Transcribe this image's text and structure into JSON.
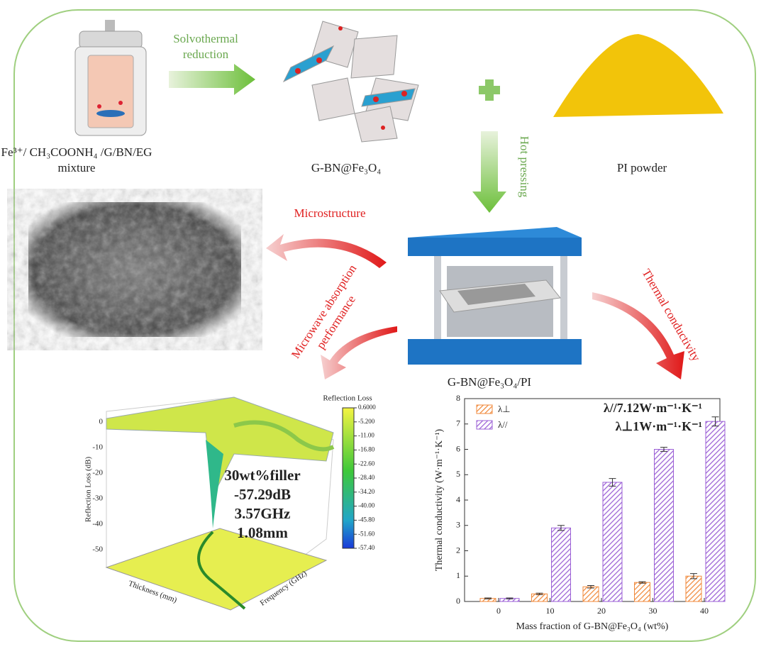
{
  "process": {
    "solvothermal_lines": [
      "Solvothermal",
      "reduction"
    ],
    "mixture_lines": [
      "Fe³⁺/ CH₃COONH₄ /G/BN/EG",
      "mixture"
    ],
    "gbn_label": "G-BN@Fe₃O₄",
    "pi_label": "PI powder",
    "hot_pressing": "Hot pressing",
    "composite_label": "G-BN@Fe₃O₄/PI"
  },
  "outputs": {
    "microstructure": "Microstructure",
    "microwave_lines": [
      "Microwave absorption",
      "performance"
    ],
    "thermal": "Thermal conductivity"
  },
  "reflection_plot": {
    "colorbar_title": "Reflection Loss",
    "colorbar_lim": [
      -57.4,
      0.6
    ],
    "colorbar_ticks": [
      {
        "value": 0.6,
        "label": "0.6000"
      },
      {
        "value": -5.2,
        "label": "-5.200"
      },
      {
        "value": -11,
        "label": "-11.00"
      },
      {
        "value": -16.8,
        "label": "-16.80"
      },
      {
        "value": -22.6,
        "label": "-22.60"
      },
      {
        "value": -28.4,
        "label": "-28.40"
      },
      {
        "value": -34.2,
        "label": "-34.20"
      },
      {
        "value": -40,
        "label": "-40.00"
      },
      {
        "value": -45.8,
        "label": "-45.80"
      },
      {
        "value": -51.6,
        "label": "-51.60"
      },
      {
        "value": -57.4,
        "label": "-57.40"
      }
    ],
    "z_label": "Reflection Loss (dB)",
    "z_ticks": [
      0,
      -10,
      -20,
      -30,
      -40,
      -50
    ],
    "x_label": "Thickness (mm)",
    "y_label": "Frequency (GHz)",
    "annotation_lines": [
      "30wt%filler",
      "-57.29dB",
      "3.57GHz",
      "1.08mm"
    ]
  },
  "bar_chart": {
    "type": "bar",
    "y_label": "Thermal conductivity (W·m⁻¹·K⁻¹)",
    "x_label": "Mass fraction of G-BN@Fe₃O₄ (wt%)",
    "categories": [
      "0",
      "10",
      "20",
      "30",
      "40"
    ],
    "ylim": [
      0,
      8
    ],
    "yticks": [
      0,
      1,
      2,
      3,
      4,
      5,
      6,
      7,
      8
    ],
    "series": [
      {
        "name": "λ⊥",
        "color": "#f08a3c",
        "values": [
          0.12,
          0.3,
          0.58,
          0.75,
          1.0
        ],
        "errors": [
          0.02,
          0.03,
          0.05,
          0.03,
          0.1
        ]
      },
      {
        "name": "λ//",
        "color": "#9b5fd6",
        "values": [
          0.12,
          2.9,
          4.7,
          6.0,
          7.1
        ],
        "errors": [
          0.02,
          0.1,
          0.15,
          0.08,
          0.18
        ]
      }
    ],
    "annotations": [
      "λ//7.12W·m⁻¹·K⁻¹",
      "λ⊥1W·m⁻¹·K⁻¹"
    ]
  }
}
